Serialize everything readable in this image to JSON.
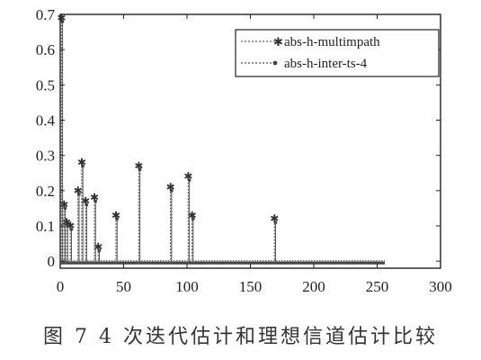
{
  "caption": "图 7   4 次迭代估计和理想信道估计比较",
  "colors": {
    "multipath": "#666666",
    "estimate": "#555555",
    "axis": "#222222"
  },
  "chart_data": {
    "type": "stem",
    "title": "",
    "xlabel": "",
    "ylabel": "",
    "xlim": [
      0,
      300
    ],
    "ylim": [
      -0.02,
      0.7
    ],
    "xticks": [
      0,
      50,
      100,
      150,
      200,
      250,
      300
    ],
    "yticks": [
      0,
      0.1,
      0.2,
      0.3,
      0.4,
      0.5,
      0.6,
      0.7
    ],
    "ytick_labels": [
      "0",
      "0.1",
      "0.2",
      "0.3",
      "0.4",
      "0.5",
      "0.6",
      "0.7"
    ],
    "legend_position": "top-right",
    "series": [
      {
        "name": "abs-h-multimpath",
        "marker": "plus-star",
        "x": [
          1,
          3,
          5,
          8,
          14,
          17,
          20,
          27,
          30,
          44,
          62,
          87,
          101,
          104,
          169
        ],
        "y": [
          0.69,
          0.16,
          0.11,
          0.1,
          0.2,
          0.28,
          0.17,
          0.18,
          0.04,
          0.13,
          0.27,
          0.21,
          0.24,
          0.13,
          0.12
        ]
      },
      {
        "name": "abs-h-inter-ts-4",
        "marker": "dot",
        "x": [
          1,
          3,
          5,
          8,
          14,
          17,
          20,
          27,
          30,
          44,
          62,
          87,
          101,
          104,
          169
        ],
        "y": [
          0.68,
          0.15,
          0.1,
          0.09,
          0.19,
          0.27,
          0.16,
          0.17,
          0.03,
          0.12,
          0.26,
          0.2,
          0.23,
          0.12,
          0.11
        ]
      }
    ],
    "noise_floor": {
      "from": 0,
      "to": 256,
      "value": -0.005
    }
  }
}
